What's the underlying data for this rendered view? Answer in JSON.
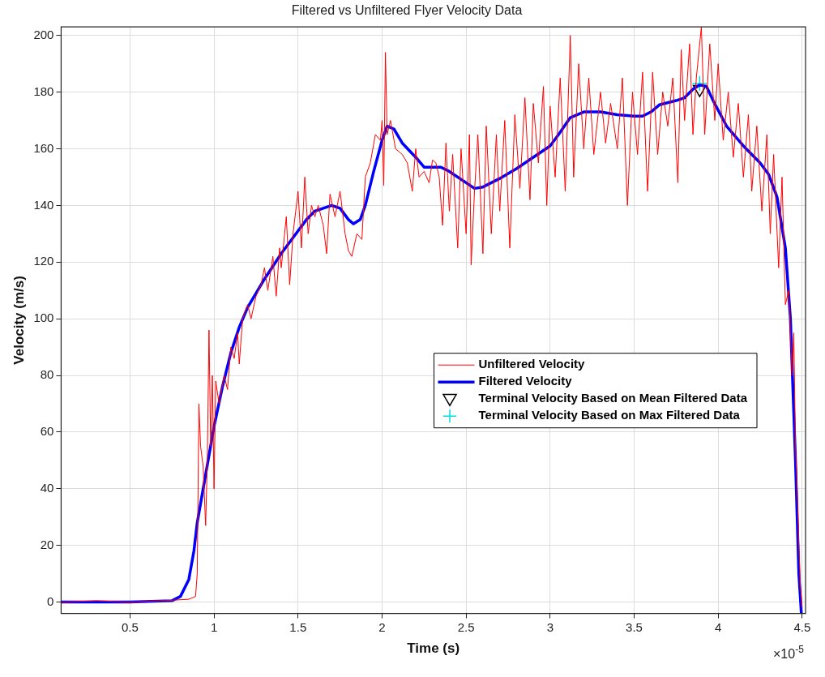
{
  "chart_data": {
    "type": "line",
    "title": "Filtered vs Unfiltered Flyer Velocity Data",
    "xlabel": "Time (s)",
    "ylabel": "Velocity (m/s)",
    "xlim": [
      0.09,
      4.52
    ],
    "ylim": [
      -4,
      203
    ],
    "xticks": [
      0.5,
      1,
      1.5,
      2,
      2.5,
      3,
      3.5,
      4,
      4.5
    ],
    "yticks": [
      0,
      20,
      40,
      60,
      80,
      100,
      120,
      140,
      160,
      180,
      200
    ],
    "grid": true,
    "legend": "right",
    "annotations": [
      "×10$^{-5}$"
    ],
    "series": [
      {
        "name": "Unfiltered Velocity",
        "color": "#ff0000",
        "x": [
          0.09,
          0.3,
          0.5,
          0.7,
          0.85,
          0.89,
          0.9,
          0.91,
          0.92,
          0.935,
          0.95,
          0.96,
          0.97,
          0.98,
          0.99,
          1.0,
          1.01,
          1.03,
          1.06,
          1.08,
          1.1,
          1.12,
          1.14,
          1.15,
          1.17,
          1.2,
          1.22,
          1.25,
          1.28,
          1.3,
          1.32,
          1.35,
          1.37,
          1.39,
          1.4,
          1.43,
          1.45,
          1.47,
          1.5,
          1.52,
          1.54,
          1.56,
          1.58,
          1.6,
          1.62,
          1.65,
          1.67,
          1.69,
          1.72,
          1.75,
          1.78,
          1.8,
          1.82,
          1.85,
          1.88,
          1.9,
          1.93,
          1.96,
          1.99,
          2.0,
          2.01,
          2.02,
          2.03,
          2.05,
          2.08,
          2.12,
          2.15,
          2.18,
          2.2,
          2.22,
          2.25,
          2.28,
          2.3,
          2.32,
          2.34,
          2.36,
          2.38,
          2.4,
          2.42,
          2.45,
          2.47,
          2.5,
          2.52,
          2.53,
          2.55,
          2.57,
          2.6,
          2.62,
          2.65,
          2.68,
          2.7,
          2.73,
          2.76,
          2.79,
          2.82,
          2.85,
          2.88,
          2.9,
          2.93,
          2.96,
          2.98,
          3.0,
          3.03,
          3.06,
          3.09,
          3.12,
          3.14,
          3.17,
          3.2,
          3.23,
          3.26,
          3.3,
          3.33,
          3.36,
          3.4,
          3.43,
          3.46,
          3.49,
          3.52,
          3.55,
          3.58,
          3.61,
          3.64,
          3.67,
          3.7,
          3.73,
          3.76,
          3.78,
          3.8,
          3.83,
          3.85,
          3.87,
          3.9,
          3.92,
          3.95,
          3.98,
          4.0,
          4.03,
          4.06,
          4.09,
          4.12,
          4.15,
          4.18,
          4.2,
          4.23,
          4.26,
          4.29,
          4.31,
          4.33,
          4.36,
          4.38,
          4.4,
          4.42,
          4.44,
          4.45,
          4.46,
          4.47,
          4.48,
          4.49,
          4.5
        ],
        "values": [
          0,
          0.5,
          0,
          0.5,
          1,
          2,
          10,
          70,
          55,
          48,
          27,
          50,
          96,
          55,
          80,
          40,
          78,
          70,
          80,
          75,
          90,
          86,
          95,
          84,
          100,
          105,
          100,
          108,
          112,
          118,
          110,
          122,
          108,
          125,
          118,
          136,
          112,
          130,
          145,
          125,
          150,
          130,
          140,
          136,
          140,
          133,
          123,
          144,
          136,
          145,
          130,
          124,
          122,
          130,
          128,
          150,
          155,
          165,
          163,
          170,
          147,
          194,
          165,
          170,
          160,
          158,
          155,
          145,
          160,
          150,
          152,
          148,
          156,
          155,
          150,
          133,
          162,
          138,
          158,
          125,
          160,
          130,
          165,
          119,
          145,
          165,
          123,
          168,
          130,
          165,
          138,
          170,
          125,
          172,
          146,
          178,
          142,
          176,
          155,
          182,
          140,
          175,
          150,
          185,
          145,
          200,
          150,
          190,
          160,
          185,
          158,
          180,
          162,
          176,
          160,
          185,
          140,
          180,
          158,
          187,
          145,
          187,
          158,
          180,
          168,
          185,
          148,
          195,
          170,
          197,
          165,
          185,
          203,
          165,
          197,
          170,
          190,
          163,
          180,
          157,
          176,
          150,
          172,
          145,
          168,
          138,
          165,
          130,
          158,
          118,
          150,
          105,
          110,
          80,
          95,
          55,
          40,
          20,
          5,
          -2
        ]
      },
      {
        "name": "Filtered Velocity",
        "color": "#0000ff",
        "x": [
          0.09,
          0.5,
          0.75,
          0.8,
          0.85,
          0.88,
          0.9,
          0.95,
          1.0,
          1.05,
          1.1,
          1.15,
          1.2,
          1.3,
          1.4,
          1.5,
          1.55,
          1.6,
          1.7,
          1.75,
          1.8,
          1.83,
          1.87,
          1.9,
          1.95,
          2.0,
          2.03,
          2.07,
          2.12,
          2.2,
          2.25,
          2.35,
          2.4,
          2.5,
          2.55,
          2.6,
          2.7,
          2.8,
          2.9,
          3.0,
          3.05,
          3.12,
          3.2,
          3.3,
          3.4,
          3.5,
          3.55,
          3.6,
          3.65,
          3.75,
          3.8,
          3.85,
          3.89,
          3.93,
          3.97,
          4.05,
          4.15,
          4.25,
          4.3,
          4.35,
          4.4,
          4.43,
          4.46,
          4.48,
          4.495
        ],
        "values": [
          0,
          0,
          0.5,
          2,
          8,
          18,
          28,
          45,
          62,
          76,
          88,
          97,
          104,
          114,
          123,
          131,
          135,
          138,
          140,
          139,
          135,
          133.5,
          135,
          140,
          152,
          163,
          168,
          167,
          162,
          157,
          153.5,
          153.5,
          152,
          148,
          146,
          146.5,
          149.5,
          153,
          157,
          161,
          165,
          171,
          173,
          173,
          172,
          171.5,
          171.5,
          173,
          175.5,
          177,
          178,
          181,
          182.5,
          182,
          177,
          168,
          161,
          155,
          151,
          143,
          125,
          100,
          50,
          10,
          -4
        ]
      },
      {
        "name": "Terminal Velocity Based on Mean Filtered Data",
        "type": "scatter",
        "marker": "triangle",
        "color": "#000000",
        "x": [
          3.89
        ],
        "values": [
          181
        ]
      },
      {
        "name": "Terminal Velocity Based on Max Filtered Data",
        "type": "scatter",
        "marker": "cross",
        "color": "#00dddd",
        "x": [
          3.89
        ],
        "values": [
          183
        ]
      }
    ]
  }
}
